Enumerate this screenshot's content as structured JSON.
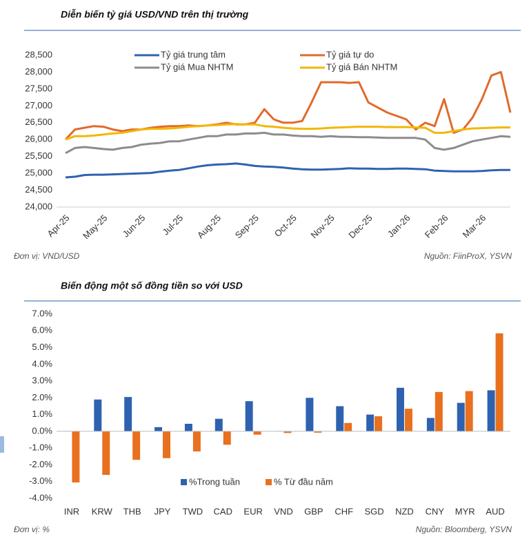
{
  "chart_data": [
    {
      "type": "line",
      "title": "Diễn biến tỷ giá USD/VND trên thị trường",
      "categories": [
        "Apr-25",
        null,
        null,
        null,
        "May-25",
        null,
        null,
        null,
        "Jun-25",
        null,
        null,
        null,
        "Jul-25",
        null,
        null,
        null,
        "Aug-25",
        null,
        null,
        null,
        "Sep-25",
        null,
        null,
        null,
        "Oct-25",
        null,
        null,
        null,
        "Nov-25",
        null,
        null,
        null,
        "Dec-25",
        null,
        null,
        null,
        "Jan-26",
        null,
        null,
        null,
        "Feb-26",
        null,
        null,
        null,
        "Mar-26",
        null,
        null,
        null
      ],
      "series": [
        {
          "name": "Tỷ giá trung tâm",
          "color": "#2e62b0",
          "values": [
            24880,
            24900,
            24950,
            24960,
            24960,
            24970,
            24980,
            24990,
            25000,
            25010,
            25050,
            25080,
            25100,
            25150,
            25200,
            25240,
            25260,
            25270,
            25290,
            25260,
            25220,
            25200,
            25190,
            25170,
            25140,
            25120,
            25110,
            25110,
            25120,
            25130,
            25150,
            25140,
            25140,
            25130,
            25130,
            25140,
            25140,
            25130,
            25120,
            25080,
            25070,
            25060,
            25060,
            25060,
            25070,
            25090,
            25100,
            25100
          ]
        },
        {
          "name": "Tỷ giá tự do",
          "color": "#e2692a",
          "values": [
            26000,
            26300,
            26350,
            26400,
            26380,
            26300,
            26250,
            26300,
            26300,
            26350,
            26380,
            26400,
            26400,
            26420,
            26400,
            26420,
            26450,
            26500,
            26450,
            26450,
            26500,
            26900,
            26600,
            26500,
            26500,
            26550,
            27100,
            27700,
            27700,
            27700,
            27680,
            27700,
            27100,
            26950,
            26800,
            26700,
            26600,
            26300,
            26500,
            26400,
            27200,
            26200,
            26300,
            26650,
            27200,
            27900,
            28000,
            26800
          ]
        },
        {
          "name": "Tỷ giá Mua NHTM",
          "color": "#8c8c8c",
          "values": [
            25600,
            25750,
            25780,
            25750,
            25720,
            25700,
            25750,
            25780,
            25850,
            25880,
            25900,
            25950,
            25950,
            26000,
            26050,
            26100,
            26100,
            26150,
            26150,
            26180,
            26180,
            26200,
            26150,
            26150,
            26120,
            26100,
            26100,
            26080,
            26100,
            26080,
            26080,
            26070,
            26070,
            26060,
            26050,
            26050,
            26050,
            26050,
            26000,
            25750,
            25700,
            25750,
            25850,
            25950,
            26000,
            26050,
            26100,
            26080
          ]
        },
        {
          "name": "Tỷ giá Bán NHTM",
          "color": "#f2b705",
          "values": [
            26000,
            26100,
            26100,
            26120,
            26150,
            26180,
            26200,
            26250,
            26300,
            26320,
            26320,
            26330,
            26350,
            26380,
            26400,
            26420,
            26430,
            26450,
            26460,
            26450,
            26450,
            26400,
            26380,
            26350,
            26330,
            26320,
            26320,
            26330,
            26350,
            26360,
            26370,
            26380,
            26380,
            26380,
            26370,
            26370,
            26370,
            26360,
            26350,
            26200,
            26200,
            26250,
            26300,
            26330,
            26340,
            26350,
            26360,
            26360
          ]
        }
      ],
      "ylim": [
        24000,
        28500
      ],
      "yticks": [
        {
          "value": 24000,
          "label": "24,000"
        },
        {
          "value": 24500,
          "label": "24,500"
        },
        {
          "value": 25000,
          "label": "25,000"
        },
        {
          "value": 25500,
          "label": "25,500"
        },
        {
          "value": 26000,
          "label": "26,000"
        },
        {
          "value": 26500,
          "label": "26,500"
        },
        {
          "value": 27000,
          "label": "27,000"
        },
        {
          "value": 27500,
          "label": "27,500"
        },
        {
          "value": 28000,
          "label": "28,000"
        },
        {
          "value": 28500,
          "label": "28,500"
        }
      ],
      "grid": false,
      "legend": "top",
      "unit_note": "Đơn vị: VND/USD",
      "source": "Nguồn: FiinProX, YSVN"
    },
    {
      "type": "bar",
      "title": "Biến động một số đồng tiền so với USD",
      "categories": [
        "INR",
        "KRW",
        "THB",
        "JPY",
        "TWD",
        "CAD",
        "EUR",
        "VND",
        "GBP",
        "CHF",
        "SGD",
        "NZD",
        "CNY",
        "MYR",
        "AUD"
      ],
      "series": [
        {
          "name": "%Trong tuần",
          "color": "#2e62b0",
          "values": [
            0.02,
            1.9,
            2.05,
            0.25,
            0.45,
            0.75,
            1.8,
            0.02,
            2.0,
            1.5,
            1.0,
            2.6,
            0.8,
            1.7,
            2.45
          ]
        },
        {
          "name": "% Từ đầu năm",
          "color": "#e8701e",
          "values": [
            -3.05,
            -2.6,
            -1.7,
            -1.6,
            -1.2,
            -0.8,
            -0.2,
            -0.1,
            -0.08,
            0.5,
            0.9,
            1.35,
            2.35,
            2.4,
            5.85
          ]
        }
      ],
      "ylim": [
        -4,
        7
      ],
      "yticks": [
        {
          "value": -4,
          "label": "-4.0%"
        },
        {
          "value": -3,
          "label": "-3.0%"
        },
        {
          "value": -2,
          "label": "-2.0%"
        },
        {
          "value": -1,
          "label": "-1.0%"
        },
        {
          "value": 0,
          "label": "0.0%"
        },
        {
          "value": 1,
          "label": "1.0%"
        },
        {
          "value": 2,
          "label": "2.0%"
        },
        {
          "value": 3,
          "label": "3.0%"
        },
        {
          "value": 4,
          "label": "4.0%"
        },
        {
          "value": 5,
          "label": "5.0%"
        },
        {
          "value": 6,
          "label": "6.0%"
        },
        {
          "value": 7,
          "label": "7.0%"
        }
      ],
      "grid": false,
      "legend": "bottom",
      "unit_note": "Đơn vị: %",
      "source": "Nguồn: Bloomberg, YSVN"
    }
  ]
}
